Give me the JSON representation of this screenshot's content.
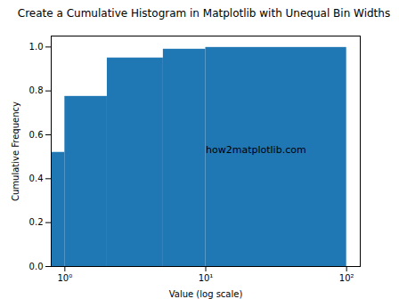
{
  "chart_data": {
    "type": "histogram",
    "title": "Create a Cumulative Histogram in Matplotlib with Unequal Bin Widths",
    "x_label": "Value (log scale)",
    "y_label": "Cumulative Frequency",
    "bins": [
      0.8,
      1,
      2,
      5,
      10,
      100
    ],
    "values": [
      0.52,
      0.775,
      0.95,
      0.99,
      0.998
    ],
    "color": "#1f77b4",
    "log": "x",
    "xlim": [
      0.8,
      125
    ],
    "xticks": [
      {
        "value": 1,
        "label": "10⁰"
      },
      {
        "value": 10,
        "label": "10¹"
      },
      {
        "value": 100,
        "label": "10²"
      }
    ],
    "ylim": [
      0,
      1.05
    ],
    "yticks": [
      {
        "value": 0,
        "label": "0.0"
      },
      0.2,
      0.4,
      0.6,
      0.8,
      {
        "value": 1,
        "label": "1.0"
      }
    ],
    "annotations": [
      {
        "text": "how2matplotlib.com",
        "x": 10,
        "y": 0.53
      }
    ],
    "grid": false
  }
}
